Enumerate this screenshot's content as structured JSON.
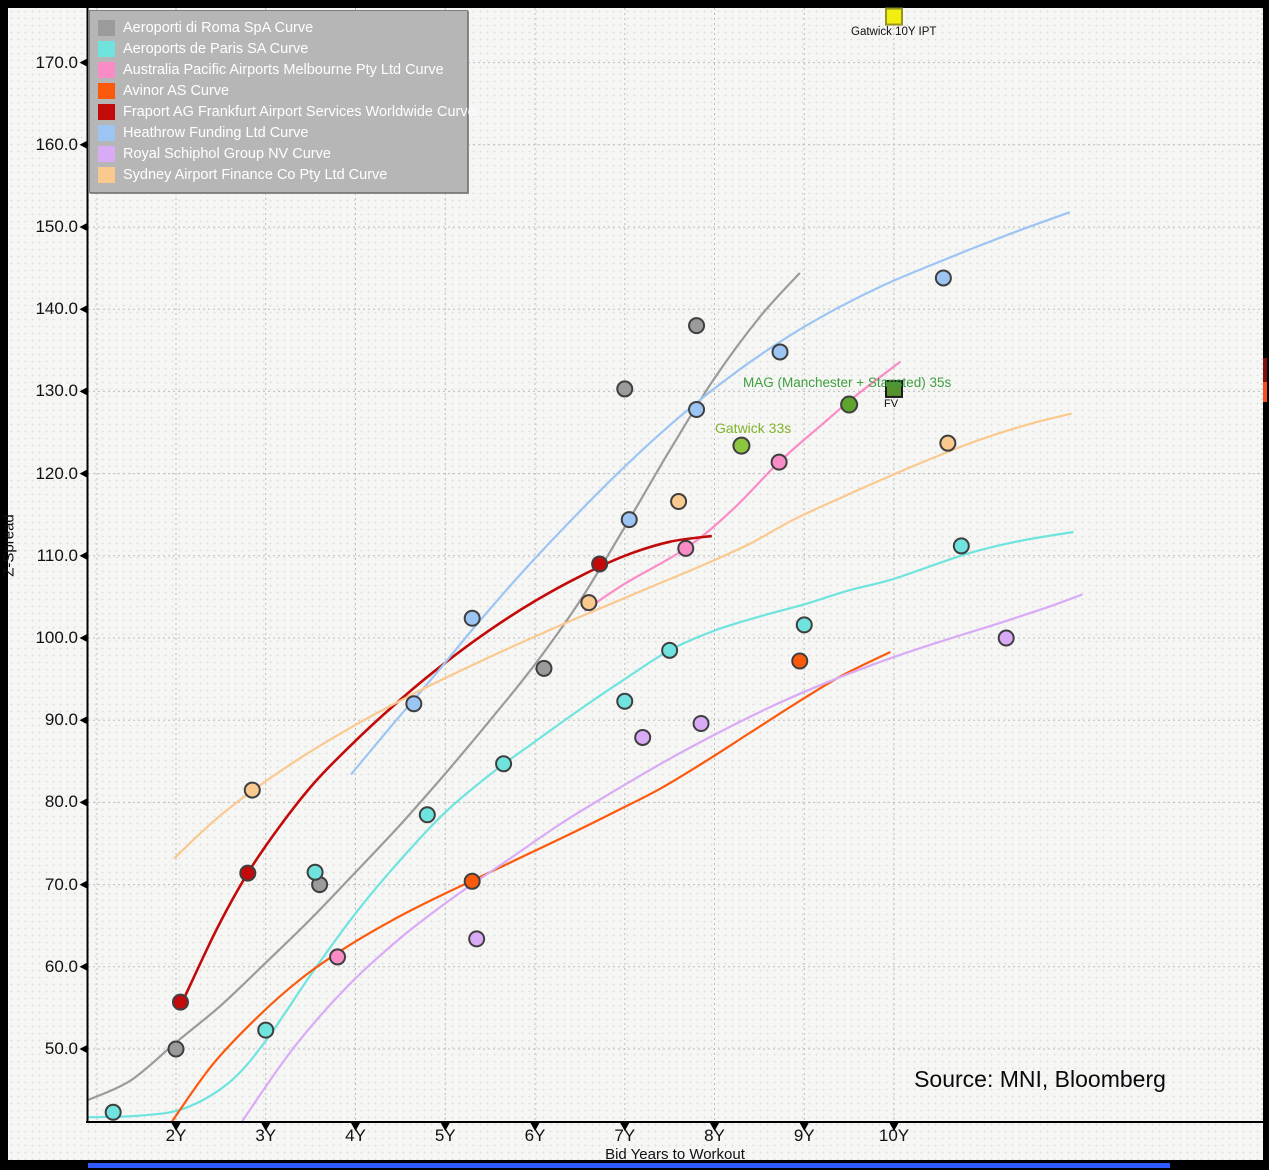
{
  "source_note": "Source: MNI, Bloomberg",
  "axes": {
    "x_title": "Bid Years to Workout",
    "y_title": "Z-Spread"
  },
  "chart_data": {
    "type": "scatter",
    "title": "",
    "xlabel": "Bid Years to Workout",
    "ylabel": "Z-Spread",
    "grid": true,
    "legend_position": "top-left",
    "x_axis": {
      "tick_values": [
        2,
        3,
        4,
        5,
        6,
        7,
        8,
        9,
        10
      ],
      "tick_labels": [
        "2Y",
        "3Y",
        "4Y",
        "5Y",
        "6Y",
        "7Y",
        "8Y",
        "9Y",
        "10Y"
      ],
      "range": [
        1.02,
        14.1
      ]
    },
    "y_axis": {
      "tick_values": [
        170,
        160,
        150,
        140,
        130,
        120,
        110,
        100,
        90,
        80,
        70,
        60,
        50
      ],
      "tick_labels": [
        "170.0",
        "160.0",
        "150.0",
        "140.0",
        "130.0",
        "120.0",
        "110.0",
        "100.0",
        "90.0",
        "80.0",
        "70.0",
        "60.0",
        "50.0"
      ],
      "range": [
        41.1,
        176.6
      ]
    },
    "series": [
      {
        "name": "Aeroporti di Roma SpA Curve",
        "color": "#9b9b9b",
        "points": [
          [
            2.0,
            50.0
          ],
          [
            3.6,
            70.0
          ],
          [
            6.1,
            96.3
          ],
          [
            7.0,
            130.3
          ],
          [
            7.8,
            138.0
          ]
        ],
        "curve": [
          [
            1.02,
            43.8
          ],
          [
            1.5,
            46.2
          ],
          [
            2,
            50.8
          ],
          [
            2.5,
            55.3
          ],
          [
            3,
            60.5
          ],
          [
            3.5,
            65.8
          ],
          [
            4,
            71.5
          ],
          [
            4.5,
            77.3
          ],
          [
            5,
            83.5
          ],
          [
            5.5,
            90
          ],
          [
            6,
            96.8
          ],
          [
            6.5,
            104.5
          ],
          [
            7,
            113.5
          ],
          [
            7.5,
            122.8
          ],
          [
            8,
            131.6
          ],
          [
            8.5,
            139
          ],
          [
            8.95,
            144.4
          ]
        ]
      },
      {
        "name": "Aeroports de Paris SA Curve",
        "color": "#6fe4de",
        "points": [
          [
            1.3,
            42.3
          ],
          [
            3.0,
            52.3
          ],
          [
            3.55,
            71.5
          ],
          [
            4.8,
            78.5
          ],
          [
            5.65,
            84.7
          ],
          [
            7.0,
            92.3
          ],
          [
            7.5,
            98.5
          ],
          [
            9.0,
            101.6
          ],
          [
            10.75,
            111.2
          ]
        ],
        "curve": [
          [
            1.02,
            41.7
          ],
          [
            1.6,
            41.9
          ],
          [
            2.1,
            42.8
          ],
          [
            2.6,
            46
          ],
          [
            3,
            51
          ],
          [
            3.5,
            59
          ],
          [
            4,
            66.5
          ],
          [
            4.5,
            73
          ],
          [
            5,
            78.8
          ],
          [
            5.5,
            83.4
          ],
          [
            6,
            87.4
          ],
          [
            6.5,
            91.3
          ],
          [
            7,
            95
          ],
          [
            7.5,
            98.5
          ],
          [
            8,
            100.9
          ],
          [
            8.5,
            102.6
          ],
          [
            9,
            104.1
          ],
          [
            9.5,
            105.8
          ],
          [
            10,
            107.2
          ],
          [
            10.8,
            110.2
          ],
          [
            11.4,
            111.8
          ],
          [
            12,
            112.9
          ]
        ]
      },
      {
        "name": "Australia Pacific Airports Melbourne Pty Ltd Curve",
        "color": "#f98cc6",
        "points": [
          [
            3.8,
            61.2
          ],
          [
            7.68,
            110.9
          ],
          [
            8.72,
            121.4
          ]
        ],
        "curve": [
          [
            6.55,
            103.3
          ],
          [
            7,
            106.6
          ],
          [
            7.68,
            110.9
          ],
          [
            8.2,
            115.6
          ],
          [
            8.72,
            121.4
          ],
          [
            9.2,
            126
          ],
          [
            9.6,
            129.7
          ],
          [
            10.07,
            133.6
          ]
        ]
      },
      {
        "name": "Avinor AS Curve",
        "color": "#fb5a0d",
        "points": [
          [
            5.3,
            70.4
          ],
          [
            8.95,
            97.2
          ]
        ],
        "curve": [
          [
            1.95,
            41.1
          ],
          [
            2.4,
            48
          ],
          [
            2.9,
            53.8
          ],
          [
            3.4,
            58.6
          ],
          [
            3.9,
            62.4
          ],
          [
            4.4,
            65.6
          ],
          [
            4.9,
            68.4
          ],
          [
            5.4,
            71
          ],
          [
            5.9,
            73.6
          ],
          [
            6.4,
            76.2
          ],
          [
            6.9,
            78.9
          ],
          [
            7.4,
            81.7
          ],
          [
            7.9,
            85
          ],
          [
            8.4,
            88.5
          ],
          [
            8.9,
            92
          ],
          [
            9.4,
            95.3
          ],
          [
            9.96,
            98.3
          ]
        ]
      },
      {
        "name": "Fraport AG Frankfurt Airport Services Worldwide Curve",
        "color": "#c20a0a",
        "points": [
          [
            2.05,
            55.7
          ],
          [
            2.8,
            71.4
          ],
          [
            6.72,
            109.0
          ]
        ],
        "curve": [
          [
            2.07,
            55.7
          ],
          [
            2.45,
            64.5
          ],
          [
            2.8,
            71.4
          ],
          [
            3.15,
            77
          ],
          [
            3.55,
            82.5
          ],
          [
            4,
            87.5
          ],
          [
            4.5,
            92.5
          ],
          [
            5,
            97
          ],
          [
            5.5,
            101
          ],
          [
            6,
            104.5
          ],
          [
            6.5,
            107.5
          ],
          [
            7,
            110
          ],
          [
            7.5,
            111.7
          ],
          [
            7.97,
            112.4
          ]
        ]
      },
      {
        "name": "Heathrow Funding Ltd Curve",
        "color": "#9cc5f4",
        "points": [
          [
            4.65,
            92.0
          ],
          [
            5.3,
            102.4
          ],
          [
            7.05,
            114.4
          ],
          [
            7.8,
            127.8
          ],
          [
            8.73,
            134.8
          ],
          [
            10.55,
            143.8
          ]
        ],
        "curve": [
          [
            3.95,
            83.4
          ],
          [
            4.4,
            89.3
          ],
          [
            4.9,
            95.7
          ],
          [
            5.4,
            102.3
          ],
          [
            5.9,
            108.5
          ],
          [
            6.4,
            114.3
          ],
          [
            6.9,
            119.8
          ],
          [
            7.4,
            124.9
          ],
          [
            7.9,
            129.5
          ],
          [
            8.4,
            133.6
          ],
          [
            8.9,
            137.2
          ],
          [
            9.4,
            140.3
          ],
          [
            9.9,
            143
          ],
          [
            10.4,
            145.3
          ],
          [
            10.9,
            147.5
          ],
          [
            11.4,
            149.6
          ],
          [
            11.96,
            151.8
          ]
        ]
      },
      {
        "name": "Royal Schiphol Group NV Curve",
        "color": "#d9aaf5",
        "points": [
          [
            5.35,
            63.4
          ],
          [
            7.2,
            87.9
          ],
          [
            7.85,
            89.6
          ],
          [
            11.25,
            100.0
          ]
        ],
        "curve": [
          [
            2.73,
            41.1
          ],
          [
            3.3,
            50
          ],
          [
            3.9,
            57.5
          ],
          [
            4.5,
            63.5
          ],
          [
            5.1,
            68.5
          ],
          [
            5.7,
            73
          ],
          [
            6.3,
            77.5
          ],
          [
            6.9,
            81.5
          ],
          [
            7.5,
            85.3
          ],
          [
            8.1,
            88.8
          ],
          [
            8.7,
            92
          ],
          [
            9.3,
            94.8
          ],
          [
            9.9,
            97.3
          ],
          [
            10.5,
            99.5
          ],
          [
            11.2,
            101.9
          ],
          [
            11.7,
            103.7
          ],
          [
            12.1,
            105.3
          ]
        ]
      },
      {
        "name": "Sydney Airport Finance Co Pty Ltd Curve",
        "color": "#fac98e",
        "points": [
          [
            2.85,
            81.5
          ],
          [
            6.6,
            104.3
          ],
          [
            7.6,
            116.6
          ],
          [
            10.6,
            123.7
          ]
        ],
        "curve": [
          [
            1.98,
            73.2
          ],
          [
            2.45,
            78
          ],
          [
            2.9,
            81.8
          ],
          [
            3.4,
            85.5
          ],
          [
            3.9,
            88.8
          ],
          [
            4.4,
            91.8
          ],
          [
            4.9,
            94.6
          ],
          [
            5.4,
            97.2
          ],
          [
            5.9,
            99.7
          ],
          [
            6.4,
            102.1
          ],
          [
            6.9,
            104.4
          ],
          [
            7.4,
            106.7
          ],
          [
            7.9,
            109
          ],
          [
            8.4,
            111.5
          ],
          [
            8.9,
            114.5
          ],
          [
            9.6,
            118
          ],
          [
            10.3,
            121.3
          ],
          [
            10.9,
            123.9
          ],
          [
            11.5,
            126
          ],
          [
            11.98,
            127.3
          ]
        ]
      }
    ],
    "specials": {
      "gatwick_ipt": {
        "label": "Gatwick 10Y IPT",
        "marker": "square",
        "x": 10.0,
        "y": 175.6,
        "fill": "#f2ee10",
        "stroke": "#96961e"
      },
      "gatwick_33s": {
        "label": "Gatwick 33s",
        "marker": "circle",
        "x": 8.3,
        "y": 123.4,
        "fill": "#8dc63f",
        "stroke": "#3f3f3f"
      },
      "mag_35s": {
        "label": "MAG (Manchester + Stansted) 35s",
        "marker": "circle",
        "x": 9.5,
        "y": 128.4,
        "fill": "#5fa42c",
        "stroke": "#3f3f3f"
      },
      "mag_fv": {
        "label": "FV",
        "marker": "square",
        "x": 10.0,
        "y": 130.3,
        "fill": "#55922e",
        "stroke": "#1a1a1a"
      }
    }
  }
}
